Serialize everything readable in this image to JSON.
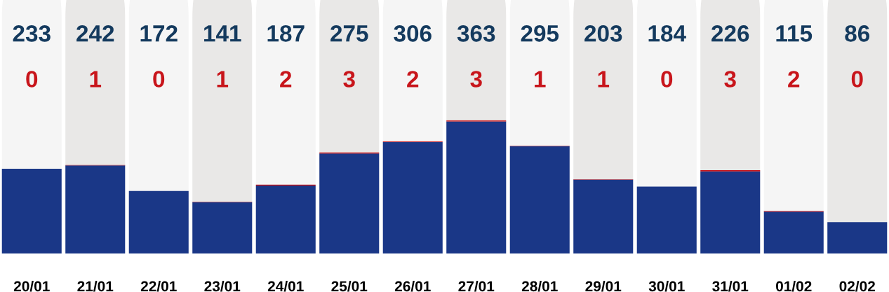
{
  "chart_data": {
    "type": "bar",
    "stacked": true,
    "data_labels": true,
    "legend": false,
    "tick_labels": "x",
    "categories": [
      "20/01",
      "21/01",
      "22/01",
      "23/01",
      "24/01",
      "25/01",
      "26/01",
      "27/01",
      "28/01",
      "29/01",
      "30/01",
      "31/01",
      "01/02",
      "02/02"
    ],
    "series": [
      {
        "color": "#1a3787",
        "values": [
          233,
          242,
          172,
          141,
          187,
          275,
          306,
          363,
          295,
          203,
          184,
          226,
          115,
          86
        ]
      },
      {
        "color": "#c8151b",
        "values": [
          0,
          1,
          0,
          1,
          2,
          3,
          2,
          3,
          1,
          1,
          0,
          3,
          2,
          0
        ]
      }
    ]
  }
}
